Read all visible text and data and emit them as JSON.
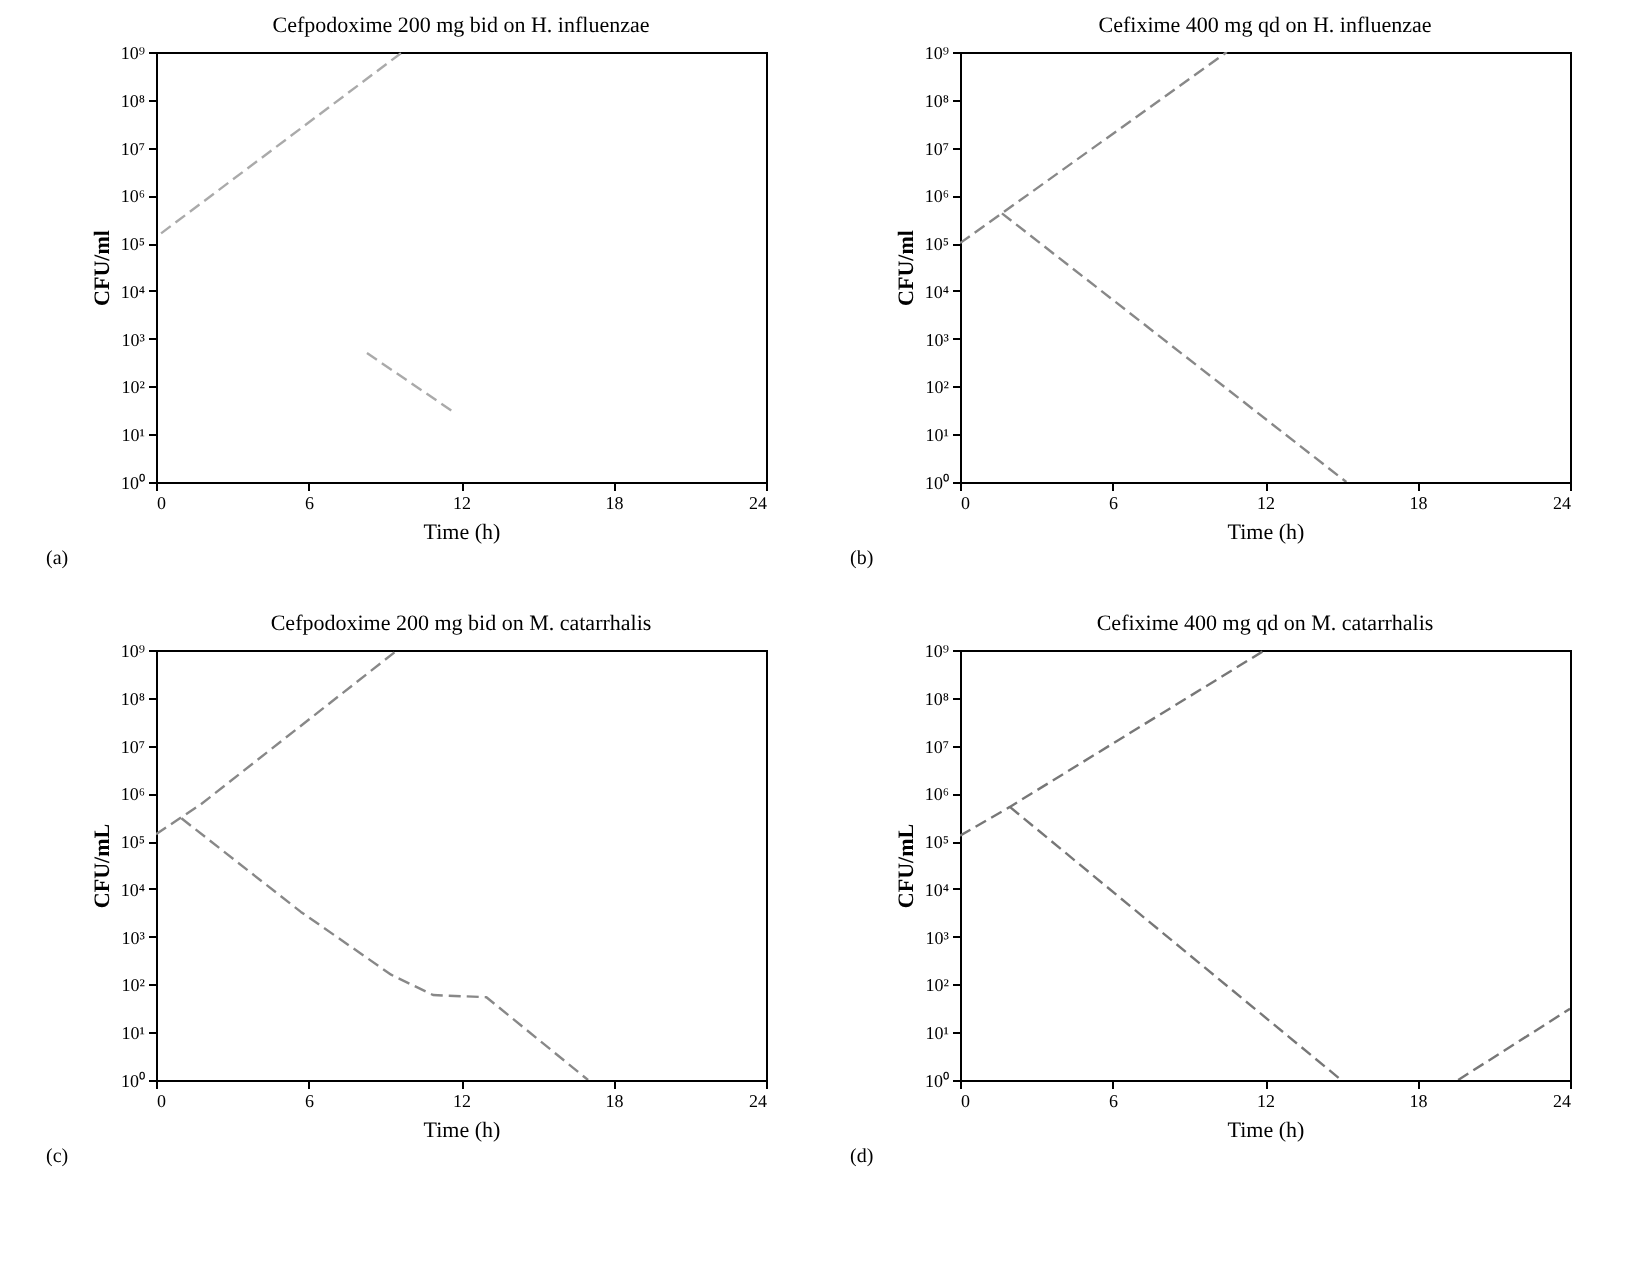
{
  "chart_data": [
    {
      "type": "line",
      "title": "Cefpodoxime 200 mg bid on H. influenzae",
      "xlabel": "Time (h)",
      "ylabel": "CFU/ml",
      "annotations": [
        "(a)"
      ],
      "log": true,
      "line_style": "dashed",
      "xlim": [
        0,
        24
      ],
      "xticks": [
        0,
        6,
        12,
        18,
        24
      ],
      "ylim": [
        1,
        1000000000
      ],
      "yticks": [
        {
          "value": 1,
          "label": "10⁰"
        },
        {
          "value": 10,
          "label": "10¹"
        },
        {
          "value": 100,
          "label": "10²"
        },
        {
          "value": 1000,
          "label": "10³"
        },
        {
          "value": 10000,
          "label": "10⁴"
        },
        {
          "value": 100000,
          "label": "10⁵"
        },
        {
          "value": 1000000,
          "label": "10⁶"
        },
        {
          "value": 10000000,
          "label": "10⁷"
        },
        {
          "value": 100000000,
          "label": "10⁸"
        },
        {
          "value": 1000000000,
          "label": "10⁹"
        }
      ],
      "series": [
        {
          "color": "#aaaaaa",
          "x": [
            0.2,
            9.7
          ],
          "values": [
            160000,
            1000000000
          ]
        },
        {
          "color": "#aaaaaa",
          "x": [
            8.3,
            11.8
          ],
          "values": [
            500,
            27
          ]
        }
      ]
    },
    {
      "type": "line",
      "title": "Cefixime 400 mg qd on H. influenzae",
      "xlabel": "Time (h)",
      "ylabel": "CFU/ml",
      "annotations": [
        "(b)"
      ],
      "log": true,
      "line_style": "dashed",
      "xlim": [
        0,
        24
      ],
      "xticks": [
        0,
        6,
        12,
        18,
        24
      ],
      "ylim": [
        1,
        1000000000
      ],
      "yticks": [
        {
          "value": 1,
          "label": "10⁰"
        },
        {
          "value": 10,
          "label": "10¹"
        },
        {
          "value": 100,
          "label": "10²"
        },
        {
          "value": 1000,
          "label": "10³"
        },
        {
          "value": 10000,
          "label": "10⁴"
        },
        {
          "value": 100000,
          "label": "10⁵"
        },
        {
          "value": 1000000,
          "label": "10⁶"
        },
        {
          "value": 10000000,
          "label": "10⁷"
        },
        {
          "value": 100000000,
          "label": "10⁸"
        },
        {
          "value": 1000000000,
          "label": "10⁹"
        }
      ],
      "series": [
        {
          "color": "#888888",
          "x": [
            0,
            1.65,
            10.5
          ],
          "values": [
            100000,
            420000,
            1000000000
          ]
        },
        {
          "color": "#888888",
          "x": [
            1.65,
            15.2
          ],
          "values": [
            420000,
            1
          ]
        }
      ]
    },
    {
      "type": "line",
      "title": "Cefpodoxime 200 mg bid on M. catarrhalis",
      "xlabel": "Time (h)",
      "ylabel": "CFU/mL",
      "annotations": [
        "(c)"
      ],
      "log": true,
      "line_style": "dashed",
      "xlim": [
        0,
        24
      ],
      "xticks": [
        0,
        6,
        12,
        18,
        24
      ],
      "ylim": [
        1,
        1000000000
      ],
      "yticks": [
        {
          "value": 1,
          "label": "10⁰"
        },
        {
          "value": 10,
          "label": "10¹"
        },
        {
          "value": 100,
          "label": "10²"
        },
        {
          "value": 1000,
          "label": "10³"
        },
        {
          "value": 10000,
          "label": "10⁴"
        },
        {
          "value": 100000,
          "label": "10⁵"
        },
        {
          "value": 1000000,
          "label": "10⁶"
        },
        {
          "value": 10000000,
          "label": "10⁷"
        },
        {
          "value": 100000000,
          "label": "10⁸"
        },
        {
          "value": 1000000000,
          "label": "10⁹"
        }
      ],
      "series": [
        {
          "color": "#888888",
          "x": [
            0,
            1.75,
            9.5
          ],
          "values": [
            140000,
            580000,
            1000000000
          ]
        },
        {
          "color": "#888888",
          "x": [
            1,
            5.7,
            9.25,
            10.9,
            13,
            17
          ],
          "values": [
            300000,
            3300,
            160,
            60,
            54,
            1
          ]
        }
      ]
    },
    {
      "type": "line",
      "title": "Cefixime 400 mg qd on M. catarrhalis",
      "xlabel": "Time (h)",
      "ylabel": "CFU/mL",
      "annotations": [
        "(d)"
      ],
      "log": true,
      "line_style": "dashed",
      "xlim": [
        0,
        24
      ],
      "xticks": [
        0,
        6,
        12,
        18,
        24
      ],
      "ylim": [
        1,
        1000000000
      ],
      "yticks": [
        {
          "value": 1,
          "label": "10⁰"
        },
        {
          "value": 10,
          "label": "10¹"
        },
        {
          "value": 100,
          "label": "10²"
        },
        {
          "value": 1000,
          "label": "10³"
        },
        {
          "value": 10000,
          "label": "10⁴"
        },
        {
          "value": 100000,
          "label": "10⁵"
        },
        {
          "value": 1000000,
          "label": "10⁶"
        },
        {
          "value": 10000000,
          "label": "10⁷"
        },
        {
          "value": 100000000,
          "label": "10⁸"
        },
        {
          "value": 1000000000,
          "label": "10⁹"
        }
      ],
      "series": [
        {
          "color": "#777777",
          "x": [
            0,
            1.96,
            12
          ],
          "values": [
            130000,
            520000,
            1000000000
          ]
        },
        {
          "color": "#777777",
          "x": [
            1.96,
            15
          ],
          "values": [
            520000,
            1
          ]
        },
        {
          "color": "#777777",
          "x": [
            19.6,
            24
          ],
          "values": [
            1,
            31
          ]
        }
      ]
    }
  ]
}
